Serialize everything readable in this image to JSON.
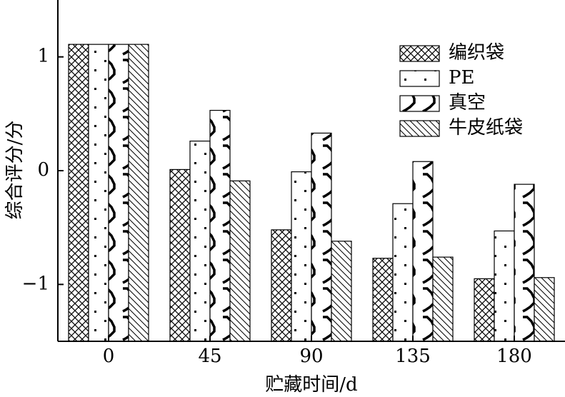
{
  "chart_data": {
    "type": "bar",
    "x_label": "贮藏时间/d",
    "y_label": "综合评分/分",
    "categories": [
      "0",
      "45",
      "90",
      "135",
      "180"
    ],
    "series": [
      {
        "name": "编织袋",
        "color": "#000000",
        "pattern": "crosshatch",
        "values": [
          1.11,
          0.01,
          -0.52,
          -0.77,
          -0.95
        ]
      },
      {
        "name": "PE",
        "color": "#000000",
        "pattern": "dots",
        "values": [
          1.11,
          0.26,
          -0.01,
          -0.29,
          -0.53
        ]
      },
      {
        "name": "真空",
        "color": "#000000",
        "pattern": "zigzag",
        "values": [
          1.11,
          0.53,
          0.33,
          0.08,
          -0.12
        ]
      },
      {
        "name": "牛皮纸袋",
        "color": "#000000",
        "pattern": "diagonal",
        "values": [
          1.11,
          -0.09,
          -0.62,
          -0.76,
          -0.94
        ]
      }
    ],
    "ylim": [
      -1.5,
      1.5
    ],
    "yticks": [
      {
        "value": -1,
        "label": "−1"
      },
      0,
      1
    ],
    "legend": "upper-right",
    "grid": false
  }
}
